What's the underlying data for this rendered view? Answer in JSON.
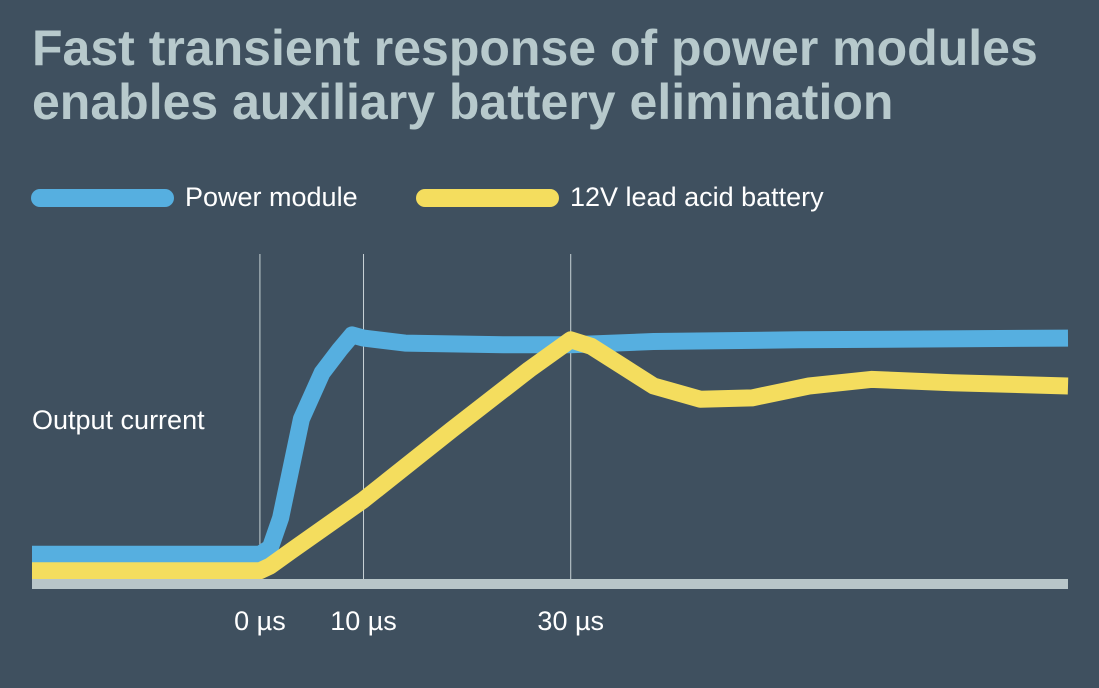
{
  "chart_data": {
    "type": "line",
    "title": [
      "Fast transient response of power modules",
      "enables auxiliary battery elimination"
    ],
    "ylabel": "Output current",
    "xlim": [
      -22,
      78
    ],
    "ylim": [
      0,
      100
    ],
    "xticks": [
      {
        "value": 0,
        "label": "0 µs"
      },
      {
        "value": 10,
        "label": "10 µs"
      },
      {
        "value": 30,
        "label": "30 µs"
      }
    ],
    "grid": true,
    "series": [
      {
        "name": "Power module",
        "color": "#56afe0",
        "x": [
          -22,
          0,
          1,
          2,
          4,
          6,
          7.7,
          8.9,
          10,
          14,
          23.5,
          30,
          38,
          52,
          78
        ],
        "values": [
          9,
          9,
          11,
          20,
          50,
          64,
          71,
          75.5,
          74.5,
          73,
          72.5,
          72.5,
          73.5,
          74,
          74.5
        ]
      },
      {
        "name": "12V lead acid battery",
        "color": "#f4dd5e",
        "x": [
          -22,
          0,
          1,
          3,
          10,
          18.5,
          26,
          30,
          32,
          35,
          38,
          42.5,
          47.5,
          53,
          59,
          66.8,
          78
        ],
        "values": [
          4,
          4,
          5.5,
          10,
          25.5,
          46.7,
          65,
          74,
          72,
          66,
          60,
          56,
          56.4,
          60,
          62,
          61,
          60
        ]
      }
    ]
  }
}
